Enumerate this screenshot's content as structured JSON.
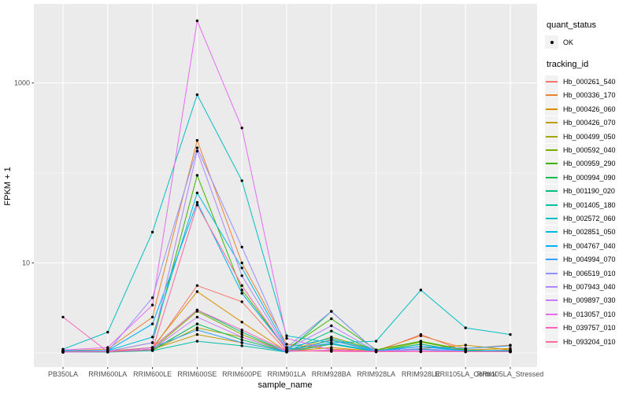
{
  "axes": {
    "x": {
      "title": "sample_name",
      "categories": [
        "PB350LA",
        "RRIM600LA",
        "RRIM600LE",
        "RRIM600SE",
        "RRIM600PE",
        "RRIM901LA",
        "RRIM928BA",
        "RRIM928LA",
        "RRIM928LE",
        "RRII105LA_Control",
        "RRII105LA_Stressed"
      ]
    },
    "y": {
      "title": "FPKM + 1",
      "scale": "log10",
      "ticks": [
        {
          "value": 10,
          "label": "10"
        },
        {
          "value": 1000,
          "label": "1000"
        }
      ],
      "minor_gridlines": [
        1,
        100
      ]
    }
  },
  "legend": {
    "quant_status": {
      "title": "quant_status",
      "items": [
        {
          "label": "OK",
          "symbol": "black-point"
        }
      ]
    },
    "tracking_id": {
      "title": "tracking_id"
    }
  },
  "colors": {
    "panel_bg": "#EBEBEB",
    "grid": "#FFFFFF",
    "tick_mark": "#333333",
    "tick_text": "#4D4D4D",
    "legend_key_bg": "#F2F2F2",
    "point": "#000000",
    "background": "#FFFFFF"
  },
  "chart_data": {
    "type": "line",
    "title": "",
    "xlabel": "sample_name",
    "ylabel": "FPKM + 1",
    "yscale": "log10",
    "ytick_labels": [
      10,
      1000
    ],
    "ylim_approx": [
      1,
      7000
    ],
    "grid": true,
    "legend_position": "right",
    "points": "black dot at every vertex (quant_status = OK)",
    "categories": [
      "PB350LA",
      "RRIM600LA",
      "RRIM600LE",
      "RRIM600SE",
      "RRIM600PE",
      "RRIM901LA",
      "RRIM928BA",
      "RRIM928LA",
      "RRIM928LE",
      "RRII105LA_Control",
      "RRII105LA_Stressed"
    ],
    "series": [
      {
        "name": "Hb_000261_540",
        "color": "#F8766D",
        "values": [
          1.03,
          1.03,
          1.1,
          5.6,
          3.7,
          1.04,
          1.06,
          1.03,
          1.6,
          1.04,
          1.08
        ]
      },
      {
        "name": "Hb_000336_170",
        "color": "#EA8331",
        "values": [
          1.06,
          1.1,
          2.5,
          230,
          10,
          1.25,
          1.1,
          1.06,
          1.55,
          1.12,
          1.22
        ]
      },
      {
        "name": "Hb_000426_060",
        "color": "#D89000",
        "values": [
          1.03,
          1.05,
          1.15,
          4.8,
          2.2,
          1.04,
          1.15,
          1.04,
          1.18,
          1.08,
          1.12
        ]
      },
      {
        "name": "Hb_000426_070",
        "color": "#C09B00",
        "values": [
          1.02,
          1.03,
          1.1,
          1.6,
          1.3,
          1.03,
          1.28,
          1.04,
          1.12,
          1.22,
          1.08
        ]
      },
      {
        "name": "Hb_000499_050",
        "color": "#A3A500",
        "values": [
          1.02,
          1.03,
          1.07,
          1.9,
          1.5,
          1.03,
          1.5,
          1.08,
          1.35,
          1.08,
          1.04
        ]
      },
      {
        "name": "Hb_000592_040",
        "color": "#7CAE00",
        "values": [
          1.02,
          1.03,
          1.1,
          2.9,
          1.6,
          1.03,
          1.4,
          1.04,
          1.32,
          1.07,
          1.04
        ]
      },
      {
        "name": "Hb_000959_290",
        "color": "#39B600",
        "values": [
          1.03,
          1.04,
          1.3,
          94,
          5.0,
          1.1,
          2.4,
          1.08,
          1.35,
          1.08,
          1.04
        ]
      },
      {
        "name": "Hb_000994_090",
        "color": "#00BB4E",
        "values": [
          1.02,
          1.03,
          1.08,
          2.1,
          1.4,
          1.03,
          2.9,
          1.04,
          1.25,
          1.04,
          1.03
        ]
      },
      {
        "name": "Hb_001190_020",
        "color": "#00BF7D",
        "values": [
          1.02,
          1.03,
          1.15,
          3.0,
          1.7,
          1.03,
          1.75,
          1.04,
          1.25,
          1.04,
          1.03
        ]
      },
      {
        "name": "Hb_001405_180",
        "color": "#00C1A3",
        "values": [
          1.02,
          1.02,
          1.06,
          1.35,
          1.2,
          1.02,
          1.25,
          1.03,
          1.1,
          1.03,
          1.03
        ]
      },
      {
        "name": "Hb_002572_060",
        "color": "#00BFC4",
        "values": [
          1.1,
          1.7,
          22,
          740,
          82,
          1.55,
          1.3,
          1.35,
          5.0,
          1.9,
          1.6
        ]
      },
      {
        "name": "Hb_002851_050",
        "color": "#00BAE0",
        "values": [
          1.06,
          1.06,
          1.5,
          60,
          8.8,
          1.15,
          1.45,
          1.06,
          1.18,
          1.06,
          1.06
        ]
      },
      {
        "name": "Hb_004767_040",
        "color": "#00B0F6",
        "values": [
          1.04,
          1.06,
          2.1,
          47,
          4.6,
          1.1,
          1.28,
          1.04,
          1.18,
          1.04,
          1.04
        ]
      },
      {
        "name": "Hb_004994_070",
        "color": "#35A2FF",
        "values": [
          1.03,
          1.03,
          1.15,
          1.8,
          1.3,
          1.03,
          1.38,
          1.04,
          1.18,
          1.12,
          1.2
        ]
      },
      {
        "name": "Hb_006519_010",
        "color": "#9590FF",
        "values": [
          1.03,
          1.04,
          4.1,
          190,
          15,
          1.15,
          2.9,
          1.04,
          1.12,
          1.04,
          1.03
        ]
      },
      {
        "name": "Hb_007943_040",
        "color": "#AE87FF",
        "values": [
          1.03,
          1.04,
          1.3,
          175,
          7.2,
          1.1,
          2.0,
          1.04,
          1.08,
          1.03,
          1.03
        ]
      },
      {
        "name": "Hb_009897_030",
        "color": "#C77CFF",
        "values": [
          1.02,
          1.03,
          1.1,
          2.5,
          1.5,
          1.04,
          1.08,
          1.03,
          1.04,
          1.03,
          1.03
        ]
      },
      {
        "name": "Hb_013057_010",
        "color": "#E76BF3",
        "values": [
          1.08,
          1.15,
          3.4,
          4900,
          316,
          1.45,
          1.08,
          1.04,
          1.04,
          1.03,
          1.03
        ]
      },
      {
        "name": "Hb_039757_010",
        "color": "#FF62BC",
        "values": [
          2.5,
          1.03,
          1.15,
          3.0,
          1.8,
          1.06,
          1.04,
          1.03,
          1.03,
          1.03,
          1.03
        ]
      },
      {
        "name": "Hb_093204_010",
        "color": "#FF6A98",
        "values": [
          1.03,
          1.03,
          1.08,
          44,
          5.6,
          1.07,
          1.04,
          1.03,
          1.03,
          1.03,
          1.03
        ]
      }
    ]
  }
}
